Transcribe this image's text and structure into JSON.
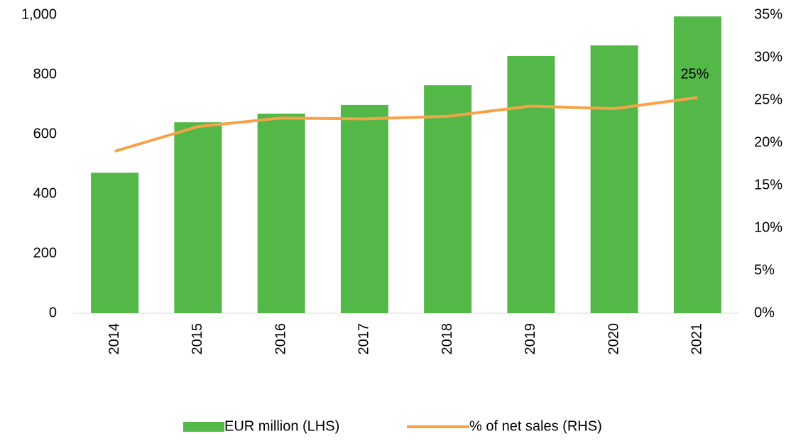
{
  "chart_data": {
    "type": "bar",
    "categories": [
      "2014",
      "2015",
      "2016",
      "2017",
      "2018",
      "2019",
      "2020",
      "2021"
    ],
    "series": [
      {
        "name": "EUR million (LHS)",
        "type": "bar",
        "color": "#53b848",
        "values": [
          471,
          640,
          669,
          698,
          764,
          862,
          898,
          995
        ]
      },
      {
        "name": "% of net sales (RHS)",
        "type": "line",
        "axis": "y2",
        "color": "#f7a249",
        "values": [
          19.0,
          21.9,
          22.9,
          22.8,
          23.1,
          24.3,
          24.0,
          25.3
        ],
        "value_labels": [
          null,
          null,
          null,
          null,
          null,
          null,
          null,
          "25%"
        ]
      }
    ],
    "ylim": [
      0,
      1000
    ],
    "yticks": [
      0,
      200,
      400,
      600,
      800,
      {
        "value": 1000,
        "label": "1,000"
      }
    ],
    "y2lim": [
      0,
      35
    ],
    "y2ticks": [
      {
        "value": 0,
        "label": "0%"
      },
      {
        "value": 5,
        "label": "5%"
      },
      {
        "value": 10,
        "label": "10%"
      },
      {
        "value": 15,
        "label": "15%"
      },
      {
        "value": 20,
        "label": "20%"
      },
      {
        "value": 25,
        "label": "25%"
      },
      {
        "value": 30,
        "label": "30%"
      },
      {
        "value": 35,
        "label": "35%"
      }
    ],
    "legend": "bottom"
  }
}
